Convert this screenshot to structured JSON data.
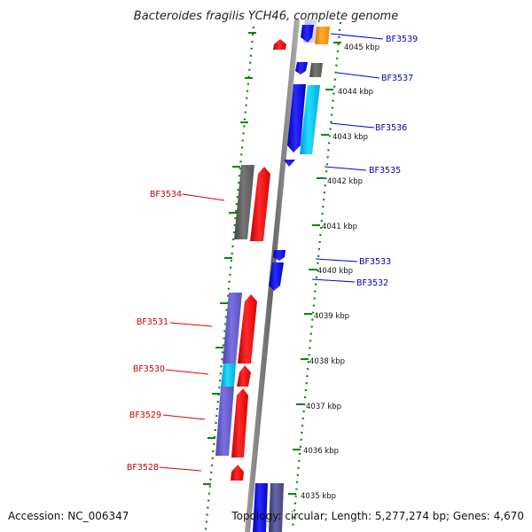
{
  "title": "Bacteroides fragilis YCH46, complete genome",
  "footer": {
    "accession": "Accession: NC_006347",
    "summary": "Topology: circular; Length: 5,277,274 bp; Genes: 4,670"
  },
  "scale": {
    "unit": "kbp",
    "ticks": [
      "4045 kbp",
      "4044 kbp",
      "4043 kbp",
      "4042 kbp",
      "4041 kbp",
      "4040 kbp",
      "4039 kbp",
      "4038 kbp",
      "4037 kbp",
      "4036 kbp",
      "4035 kbp"
    ]
  },
  "colors": {
    "forward_strand": "#ff0000",
    "reverse_strand": "#0000ee",
    "forward_label": "#cc0000",
    "reverse_label": "#0000bb",
    "backbone": "#888888",
    "tick_green": "#008800",
    "cyan": "#00c8f0",
    "gray": "#666666",
    "orange": "#ff9900",
    "purple": "#6655cc"
  },
  "gene_labels": {
    "reverse": [
      "BF3539",
      "BF3537",
      "BF3536",
      "BF3535",
      "BF3533",
      "BF3532"
    ],
    "forward": [
      "BF3534",
      "BF3531",
      "BF3530",
      "BF3529",
      "BF3528"
    ]
  }
}
